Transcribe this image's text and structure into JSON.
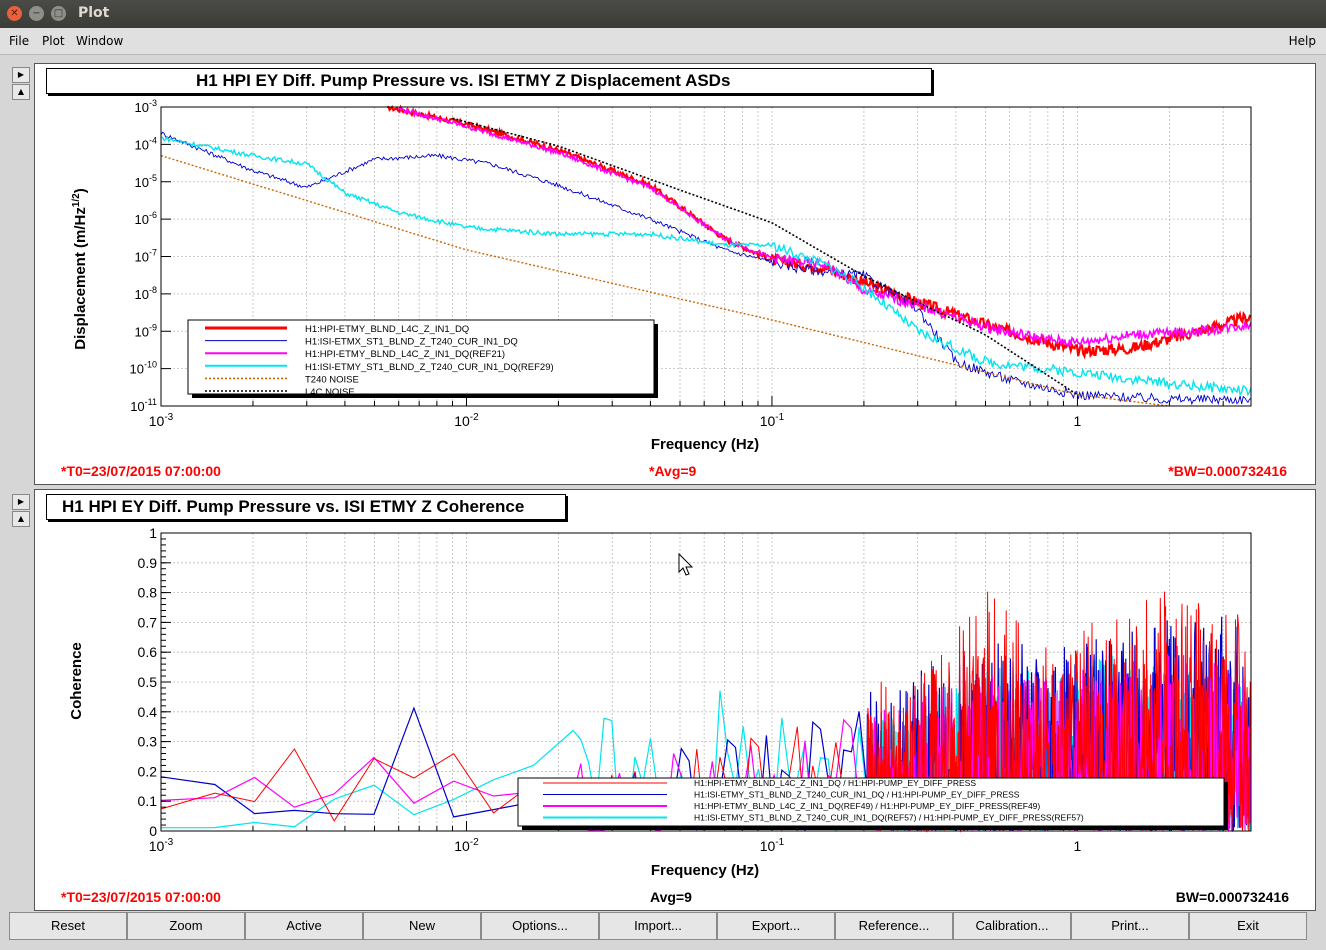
{
  "window": {
    "title": "Plot"
  },
  "menu": {
    "file": "File",
    "plot": "Plot",
    "window": "Window",
    "help": "Help"
  },
  "top_plot": {
    "title": "H1 HPI EY Diff. Pump Pressure vs. ISI ETMY Z Displacement ASDs",
    "ylabel_main": "Displacement (m/Hz",
    "ylabel_exp": "1/2",
    "ylabel_end": ")",
    "xlabel": "Frequency (Hz)",
    "t0": "*T0=23/07/2015 07:00:00",
    "avg": "*Avg=9",
    "bw": "*BW=0.000732416",
    "legend": [
      {
        "label": "H1:HPI-ETMY_BLND_L4C_Z_IN1_DQ",
        "color": "#ff0000"
      },
      {
        "label": "H1:ISI-ETMX_ST1_BLND_Z_T240_CUR_IN1_DQ",
        "color": "#0000cc"
      },
      {
        "label": "H1:HPI-ETMY_BLND_L4C_Z_IN1_DQ(REF21)",
        "color": "#ff00ff"
      },
      {
        "label": "H1:ISI-ETMY_ST1_BLND_Z_T240_CUR_IN1_DQ(REF29)",
        "color": "#00e5ee"
      },
      {
        "label": "T240 NOISE",
        "color": "#cc6600"
      },
      {
        "label": "L4C NOISE",
        "color": "#000000"
      }
    ]
  },
  "bottom_plot": {
    "title": "H1 HPI EY Diff. Pump Pressure vs. ISI ETMY Z Coherence",
    "ylabel": "Coherence",
    "xlabel": "Frequency (Hz)",
    "t0": "*T0=23/07/2015 07:00:00",
    "avg": "Avg=9",
    "bw": "BW=0.000732416",
    "legend": [
      {
        "label": "H1:HPI-ETMY_BLND_L4C_Z_IN1_DQ / H1:HPI-PUMP_EY_DIFF_PRESS",
        "color": "#ff0000"
      },
      {
        "label": "H1:ISI-ETMY_ST1_BLND_Z_T240_CUR_IN1_DQ / H1:HPI-PUMP_EY_DIFF_PRESS",
        "color": "#0000cc"
      },
      {
        "label": "H1:HPI-ETMY_BLND_L4C_Z_IN1_DQ(REF49) / H1:HPI-PUMP_EY_DIFF_PRESS(REF49)",
        "color": "#ff00ff"
      },
      {
        "label": "H1:ISI-ETMY_ST1_BLND_Z_T240_CUR_IN1_DQ(REF57) / H1:HPI-PUMP_EY_DIFF_PRESS(REF57)",
        "color": "#00e5ee"
      }
    ]
  },
  "buttons": [
    "Reset",
    "Zoom",
    "Active",
    "New",
    "Options...",
    "Import...",
    "Export...",
    "Reference...",
    "Calibration...",
    "Print...",
    "Exit"
  ],
  "chart_data": [
    {
      "type": "line",
      "title": "H1 HPI EY Diff. Pump Pressure vs. ISI ETMY Z Displacement ASDs",
      "xlabel": "Frequency (Hz)",
      "ylabel": "Displacement (m/Hz1/2)",
      "xscale": "log",
      "yscale": "log",
      "xlim": [
        0.001,
        3.7
      ],
      "ylim": [
        1e-11,
        0.001
      ],
      "grid": true,
      "legend_position": "bottom-left",
      "x_ticks": [
        "10-3",
        "10-2",
        "10-1",
        "1"
      ],
      "y_ticks": [
        "10-11",
        "10-10",
        "10-9",
        "10-8",
        "10-7",
        "10-6",
        "10-5",
        "10-4",
        "10-3"
      ],
      "series": [
        {
          "name": "H1:HPI-ETMY_BLND_L4C_Z_IN1_DQ",
          "color": "#ff0000",
          "x": [
            0.0055,
            0.01,
            0.02,
            0.04,
            0.07,
            0.1,
            0.15,
            0.2,
            0.3,
            0.5,
            0.8,
            1.0,
            1.5,
            2.5,
            3.7
          ],
          "y": [
            0.001,
            0.00035,
            7e-05,
            8e-06,
            3e-07,
            8e-08,
            5e-08,
            2e-08,
            6e-09,
            1.5e-09,
            5e-10,
            3e-10,
            3.5e-10,
            1e-09,
            2.5e-09
          ]
        },
        {
          "name": "H1:ISI-ETMX_ST1_BLND_Z_T240_CUR_IN1_DQ",
          "color": "#0000cc",
          "x": [
            0.001,
            0.002,
            0.003,
            0.005,
            0.008,
            0.012,
            0.02,
            0.04,
            0.07,
            0.12,
            0.2,
            0.3,
            0.4,
            0.6,
            1.0,
            2.0,
            3.7
          ],
          "y": [
            0.0002,
            2e-05,
            7e-06,
            4e-05,
            5e-05,
            3e-05,
            8e-06,
            1e-06,
            1.5e-07,
            5e-08,
            3e-08,
            4e-09,
            1.5e-10,
            5e-11,
            2e-11,
            1.5e-11,
            1.5e-11
          ]
        },
        {
          "name": "H1:HPI-ETMY_BLND_L4C_Z_IN1_DQ(REF21)",
          "color": "#ff00ff",
          "x": [
            0.006,
            0.01,
            0.02,
            0.04,
            0.07,
            0.1,
            0.15,
            0.2,
            0.3,
            0.5,
            0.8,
            1.0,
            1.5,
            2.5,
            3.7
          ],
          "y": [
            0.0009,
            0.0003,
            6e-05,
            7e-06,
            3e-07,
            9e-08,
            6e-08,
            1.2e-08,
            5e-09,
            1.3e-09,
            6e-10,
            5e-10,
            8e-10,
            1e-09,
            1.5e-09
          ]
        },
        {
          "name": "H1:ISI-ETMY_ST1_BLND_Z_T240_CUR_IN1_DQ(REF29)",
          "color": "#00e5ee",
          "x": [
            0.001,
            0.002,
            0.003,
            0.004,
            0.006,
            0.01,
            0.02,
            0.04,
            0.07,
            0.1,
            0.15,
            0.2,
            0.3,
            0.5,
            1.0,
            2.0,
            3.7
          ],
          "y": [
            0.00015,
            5e-05,
            3e-05,
            5e-06,
            1.5e-06,
            6e-07,
            4e-07,
            4e-07,
            2e-07,
            2e-07,
            6e-08,
            1.5e-08,
            1e-09,
            1.5e-10,
            8e-11,
            4e-11,
            2.5e-11
          ]
        },
        {
          "name": "T240 NOISE",
          "color": "#cc6600",
          "x": [
            0.001,
            0.01,
            0.1,
            1.0,
            2.0
          ],
          "y": [
            5e-05,
            1.5e-07,
            2e-09,
            2e-11,
            1e-11
          ]
        },
        {
          "name": "L4C NOISE",
          "color": "#000000",
          "x": [
            0.009,
            0.02,
            0.05,
            0.1,
            0.2,
            0.3,
            0.5,
            1.0
          ],
          "y": [
            0.0005,
            9e-05,
            6e-06,
            8e-07,
            3e-08,
            6e-09,
            8e-10,
            2e-11
          ]
        }
      ]
    },
    {
      "type": "line",
      "title": "H1 HPI EY Diff. Pump Pressure vs. ISI ETMY Z Coherence",
      "xlabel": "Frequency (Hz)",
      "ylabel": "Coherence",
      "xscale": "log",
      "xlim": [
        0.001,
        3.7
      ],
      "ylim": [
        0,
        1
      ],
      "grid": true,
      "legend_position": "bottom-right",
      "x_ticks": [
        "10-3",
        "10-2",
        "10-1",
        "1"
      ],
      "y_ticks": [
        "0",
        "0.1",
        "0.2",
        "0.3",
        "0.4",
        "0.5",
        "0.6",
        "0.7",
        "0.8",
        "0.9",
        "1"
      ],
      "series": [
        {
          "name": "H1:HPI-ETMY_BLND_L4C_Z_IN1_DQ / H1:HPI-PUMP_EY_DIFF_PRESS",
          "color": "#ff0000",
          "x": [
            0.001,
            0.0015,
            0.002,
            0.0025,
            0.003,
            0.0035,
            0.004,
            0.0045,
            0.006,
            0.008,
            0.012,
            0.02,
            0.04,
            0.08,
            0.15,
            0.3,
            0.5,
            0.8,
            1.2,
            2.0,
            3.7
          ],
          "y": [
            0.1,
            0.2,
            0.05,
            0.42,
            0.15,
            0.05,
            0.02,
            0.35,
            0.08,
            0.22,
            0.1,
            0.15,
            0.12,
            0.2,
            0.25,
            0.3,
            0.45,
            0.35,
            0.4,
            0.45,
            0.4
          ]
        },
        {
          "name": "H1:ISI-ETMY_ST1_BLND_Z_T240_CUR_IN1_DQ / H1:HPI-PUMP_EY_DIFF_PRESS",
          "color": "#0000cc",
          "x": [
            0.001,
            0.002,
            0.003,
            0.005,
            0.006,
            0.008,
            0.012,
            0.02,
            0.04,
            0.08,
            0.15,
            0.3,
            0.5,
            1.0,
            2.0,
            3.7
          ],
          "y": [
            0.18,
            0.08,
            0.05,
            0.1,
            0.4,
            0.1,
            0.05,
            0.1,
            0.15,
            0.2,
            0.25,
            0.3,
            0.35,
            0.35,
            0.4,
            0.4
          ]
        },
        {
          "name": "H1:HPI-ETMY_BLND_L4C_Z_IN1_DQ(REF49) / H1:HPI-PUMP_EY_DIFF_PRESS(REF49)",
          "color": "#ff00ff",
          "x": [
            0.001,
            0.0015,
            0.002,
            0.003,
            0.0045,
            0.006,
            0.008,
            0.012,
            0.02,
            0.04,
            0.08,
            0.15,
            0.3,
            0.5,
            1.0,
            2.0,
            3.7
          ],
          "y": [
            0.08,
            0.12,
            0.17,
            0.02,
            0.3,
            0.05,
            0.3,
            0.1,
            0.12,
            0.15,
            0.18,
            0.2,
            0.25,
            0.3,
            0.3,
            0.35,
            0.3
          ]
        },
        {
          "name": "H1:ISI-ETMY_ST1_BLND_Z_T240_CUR_IN1_DQ(REF57) / H1:HPI-PUMP_EY_DIFF_PRESS(REF57)",
          "color": "#00e5ee",
          "x": [
            0.001,
            0.002,
            0.003,
            0.0045,
            0.006,
            0.008,
            0.012,
            0.02,
            0.04,
            0.08,
            0.15,
            0.3,
            0.5,
            1.0,
            2.0,
            3.7
          ],
          "y": [
            0.02,
            0.02,
            0.02,
            0.28,
            0.05,
            0.1,
            0.18,
            0.2,
            0.25,
            0.3,
            0.2,
            0.25,
            0.3,
            0.35,
            0.3,
            0.3
          ]
        }
      ]
    }
  ]
}
